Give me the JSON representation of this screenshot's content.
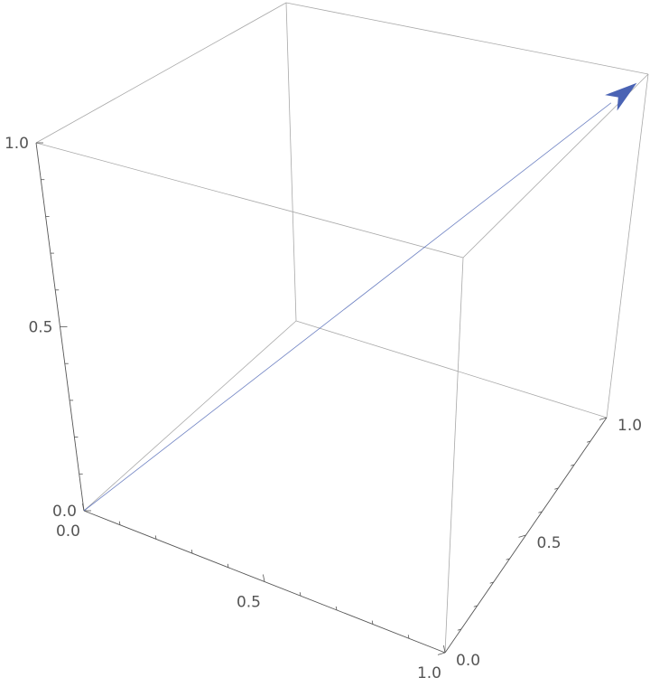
{
  "chart_data": {
    "type": "3d-arrow",
    "series": [
      {
        "from": [
          0,
          0,
          0
        ],
        "to": [
          1,
          1,
          1
        ]
      }
    ],
    "axes": {
      "x": {
        "range": [
          0,
          1
        ],
        "ticks": [
          "0.0",
          "0.5",
          "1.0"
        ]
      },
      "y": {
        "range": [
          0,
          1
        ],
        "ticks": [
          "0.0",
          "0.5",
          "1.0"
        ]
      },
      "z": {
        "range": [
          0,
          1
        ],
        "ticks": [
          "0.0",
          "0.5",
          "1.0"
        ]
      }
    },
    "box": true,
    "grid": false,
    "colors": {
      "arrow": "#4a63b4",
      "box": "#a8a8a8",
      "axis": "#555555"
    }
  }
}
